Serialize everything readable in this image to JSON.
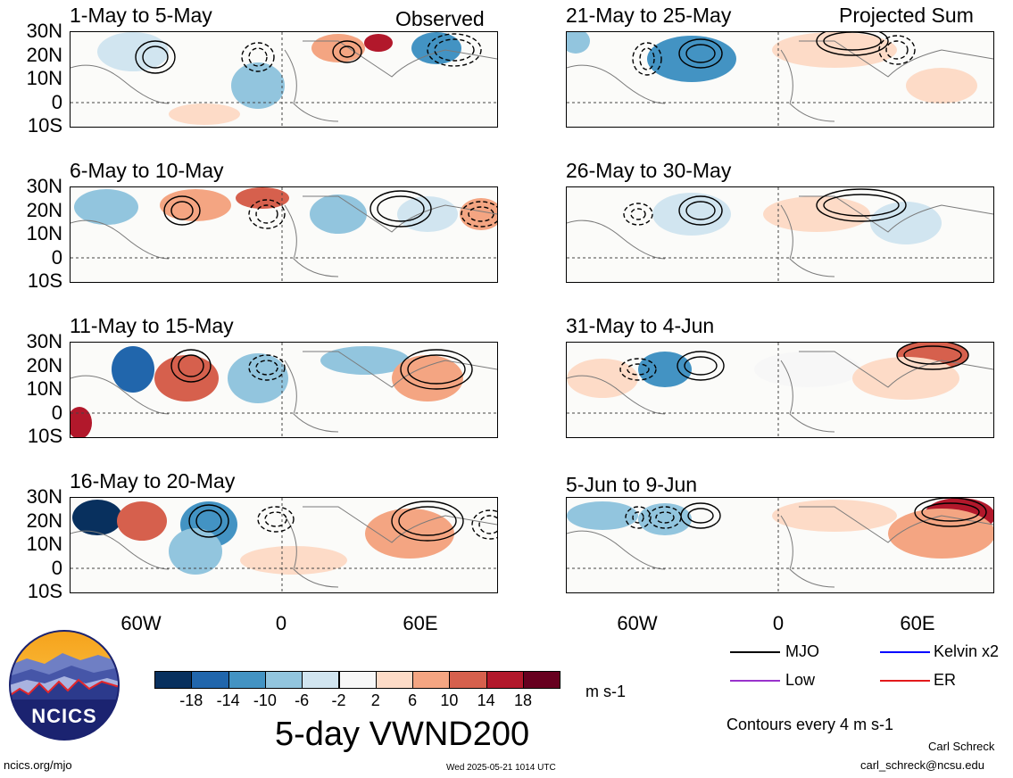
{
  "panels_left": [
    {
      "title": "1-May to 5-May",
      "tag": "Observed"
    },
    {
      "title": "6-May to 10-May",
      "tag": ""
    },
    {
      "title": "11-May to 15-May",
      "tag": ""
    },
    {
      "title": "16-May to 20-May",
      "tag": ""
    }
  ],
  "panels_right": [
    {
      "title": "21-May to 25-May",
      "tag": "Projected Sum"
    },
    {
      "title": "26-May to 30-May",
      "tag": ""
    },
    {
      "title": "31-May to 4-Jun",
      "tag": ""
    },
    {
      "title": "5-Jun to 9-Jun",
      "tag": ""
    }
  ],
  "lat_labels": [
    "30N",
    "20N",
    "10N",
    "0",
    "10S"
  ],
  "lon_labels": [
    "60W",
    "0",
    "60E"
  ],
  "colorbar": {
    "ticks": [
      "-18",
      "-14",
      "-10",
      "-6",
      "-2",
      "2",
      "6",
      "10",
      "14",
      "18"
    ],
    "colors": [
      "#08305e",
      "#2166ac",
      "#4393c3",
      "#92c5de",
      "#d1e5f0",
      "#f7f7f7",
      "#fddbc7",
      "#f4a582",
      "#d6604d",
      "#b2182b",
      "#67001f"
    ],
    "units": "m s-1"
  },
  "main_title": "5-day VWND200",
  "legend": {
    "items": [
      {
        "label": "MJO",
        "color": "#000000"
      },
      {
        "label": "Kelvin x2",
        "color": "#0000ff"
      },
      {
        "label": "Low",
        "color": "#9933cc"
      },
      {
        "label": "ER",
        "color": "#e31a1c"
      }
    ],
    "contour_note": "Contours every 4 m s-1"
  },
  "logo": {
    "text": "NCICS"
  },
  "footer": {
    "site": "ncics.org/mjo",
    "timestamp": "Wed 2025-05-21 1014 UTC",
    "author": "Carl Schreck",
    "email": "carl_schreck@ncsu.edu"
  }
}
